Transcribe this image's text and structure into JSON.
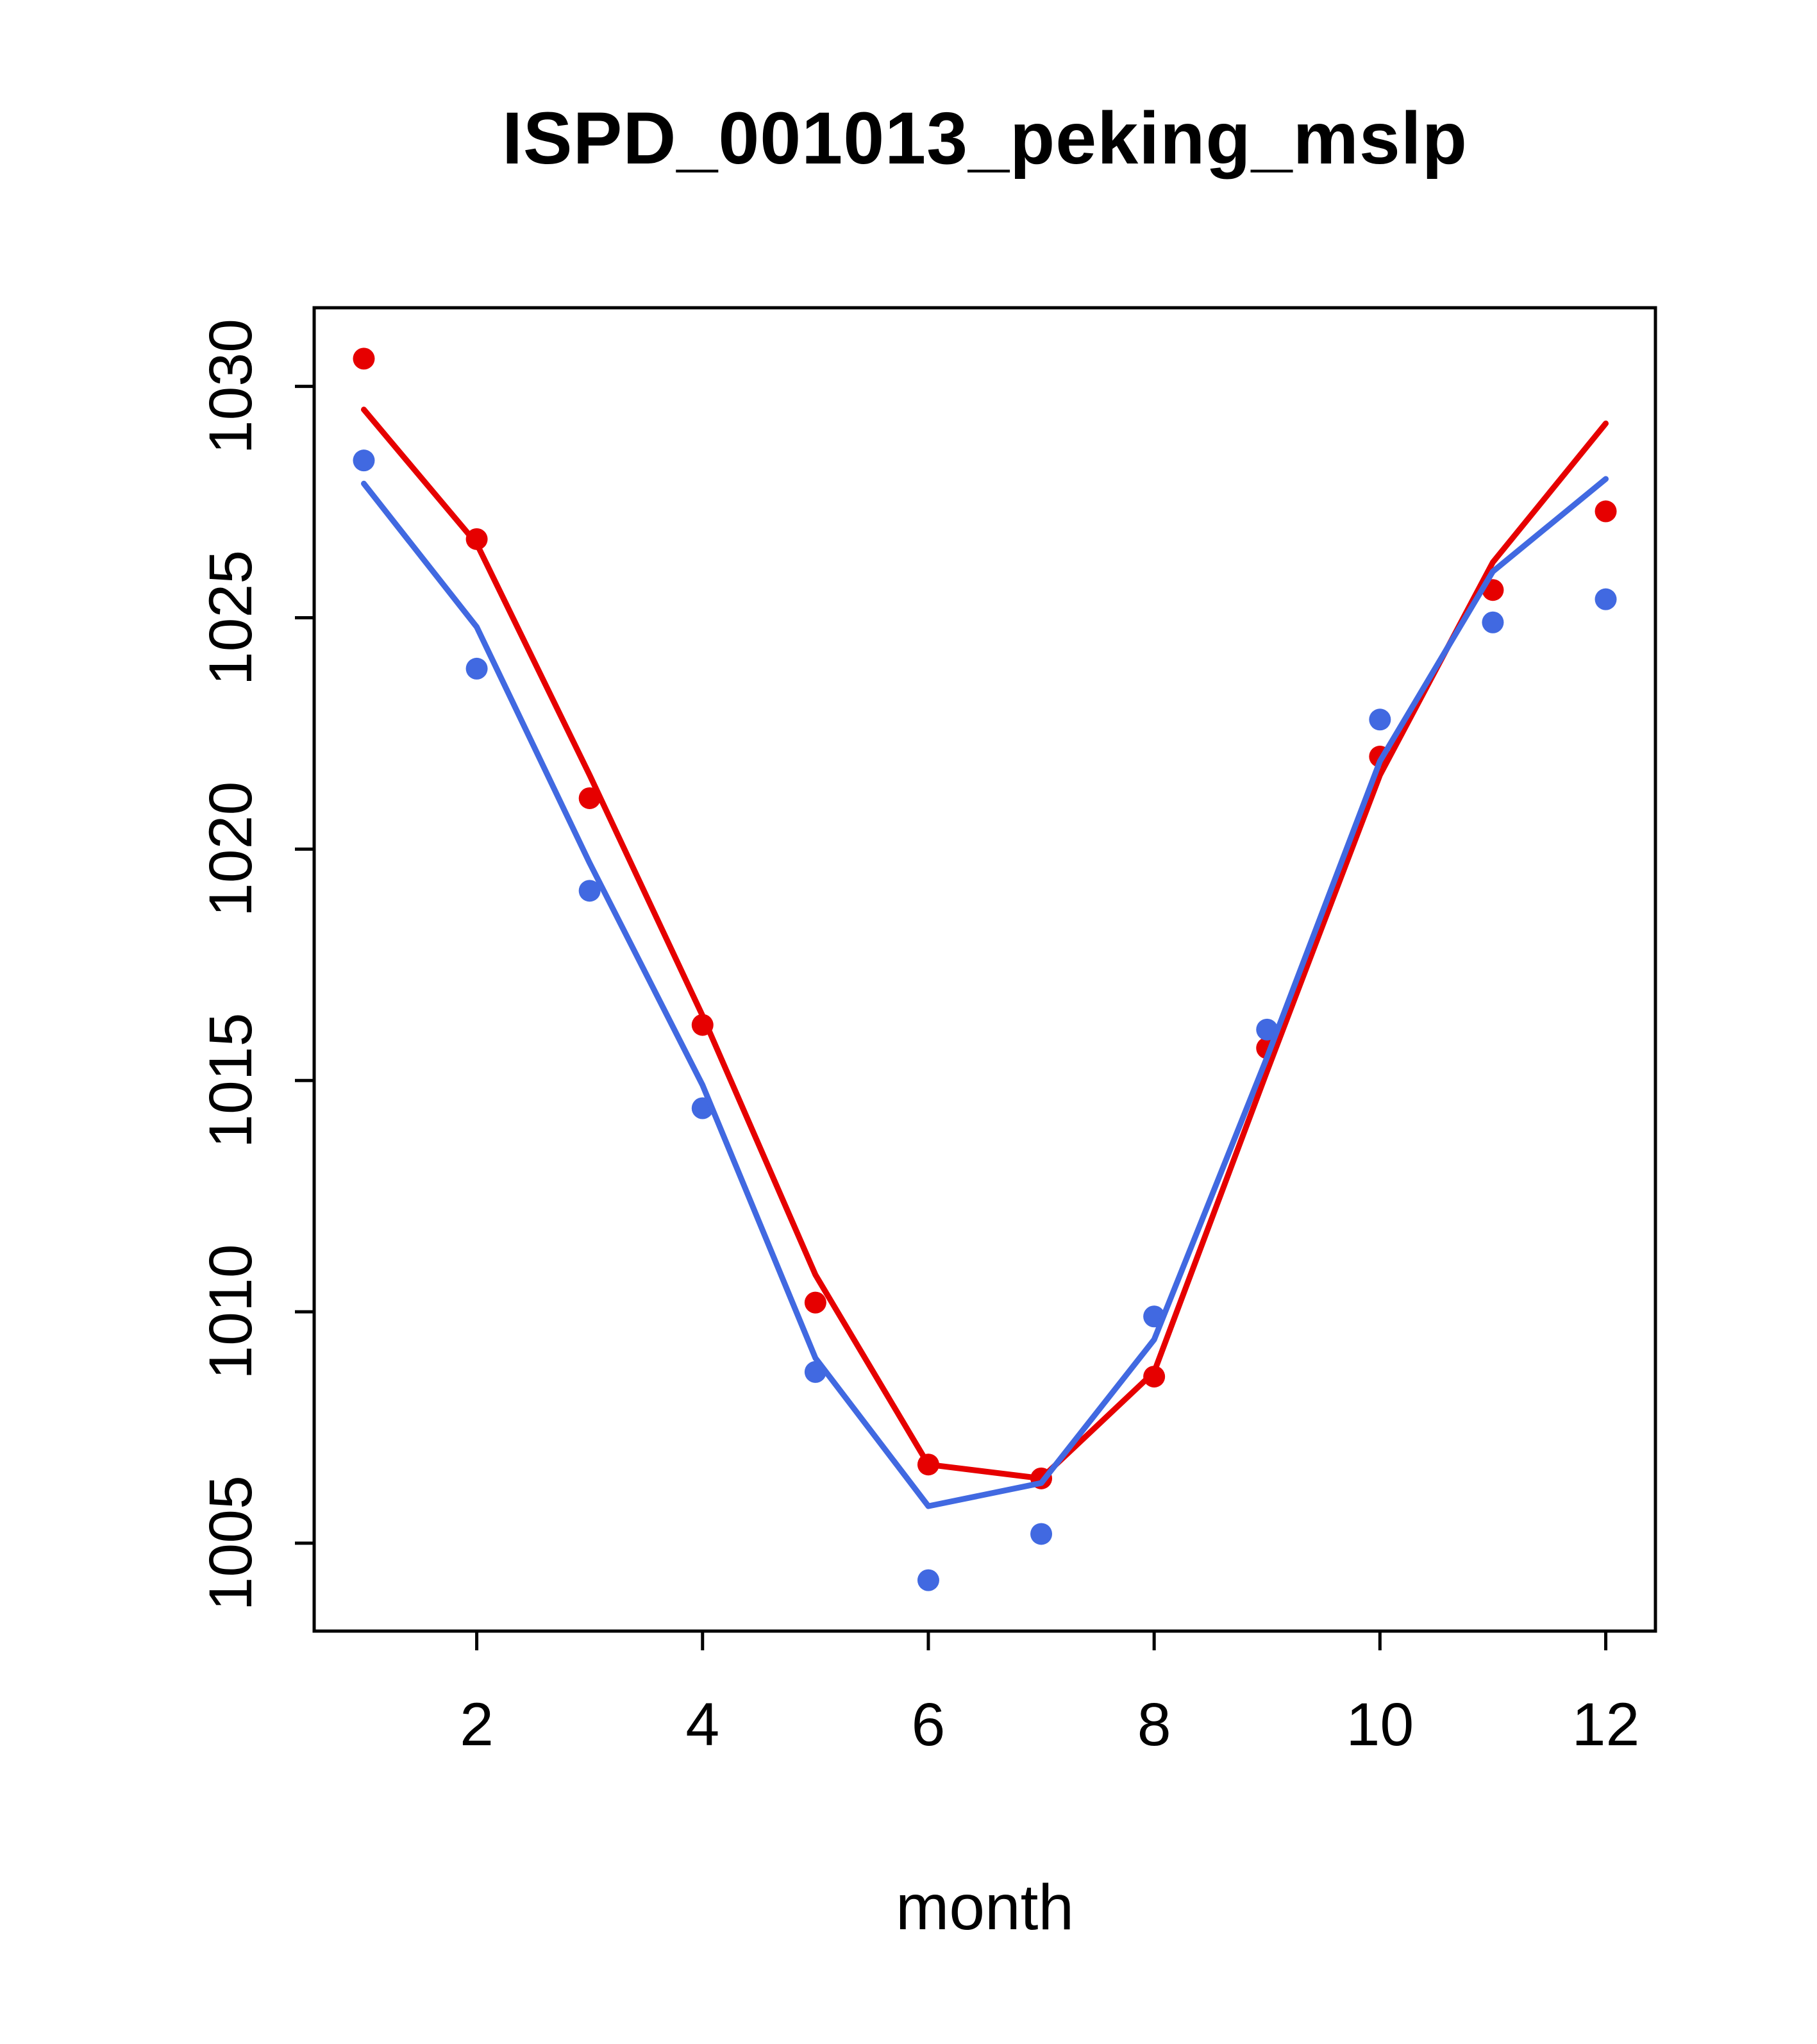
{
  "chart_data": {
    "type": "line",
    "title": "ISPD_001013_peking_mslp",
    "xlabel": "month",
    "ylabel": "",
    "grid": false,
    "legend": "none",
    "x_range": [
      0.56,
      12.44
    ],
    "y_range": [
      1003.1,
      1031.7
    ],
    "x_ticks": [
      2,
      4,
      6,
      8,
      10,
      12
    ],
    "y_ticks": [
      1005,
      1010,
      1015,
      1020,
      1025,
      1030
    ],
    "months": [
      1,
      2,
      3,
      4,
      5,
      6,
      7,
      8,
      9,
      10,
      11,
      12
    ],
    "colors": {
      "red": "#e60000",
      "blue": "#4169e1"
    },
    "series": [
      {
        "name": "red-points",
        "kind": "points",
        "color": "red",
        "values": [
          1030.6,
          1026.7,
          1021.1,
          1016.2,
          1010.2,
          1006.7,
          1006.4,
          1008.6,
          1015.7,
          1022.0,
          1025.6,
          1027.3
        ]
      },
      {
        "name": "blue-points",
        "kind": "points",
        "color": "blue",
        "values": [
          1028.4,
          1023.9,
          1019.1,
          1014.4,
          1008.7,
          1004.2,
          1005.2,
          1009.9,
          1016.1,
          1022.8,
          1024.9,
          1025.4
        ]
      },
      {
        "name": "red-line",
        "kind": "line",
        "color": "red",
        "values": [
          1029.5,
          1026.6,
          1021.6,
          1016.4,
          1010.8,
          1006.7,
          1006.4,
          1008.7,
          1015.2,
          1021.6,
          1026.2,
          1029.2
        ]
      },
      {
        "name": "blue-line",
        "kind": "line",
        "color": "blue",
        "values": [
          1027.9,
          1024.8,
          1019.7,
          1014.9,
          1009.0,
          1005.8,
          1006.3,
          1009.4,
          1015.5,
          1021.9,
          1026.0,
          1028.0
        ]
      }
    ]
  }
}
